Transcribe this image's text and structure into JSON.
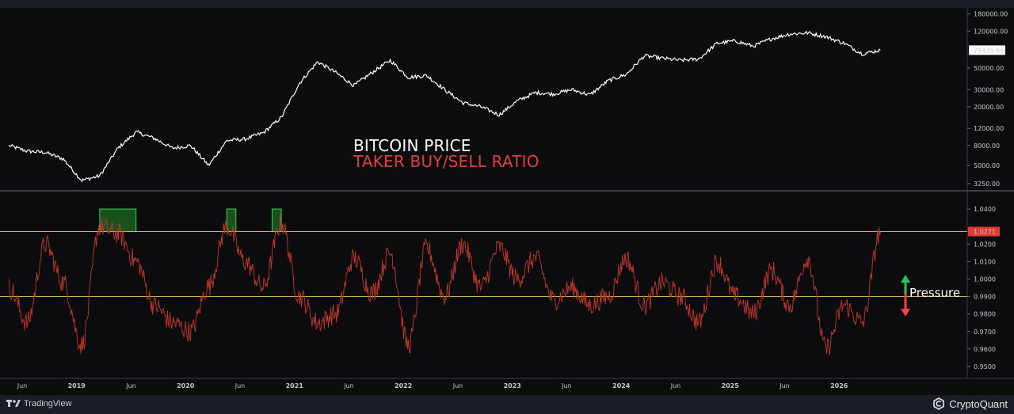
{
  "titles": {
    "price": "BITCOIN PRICE",
    "ratio": "TAKER BUY/SELL RATIO"
  },
  "pressure_label": "Pressure",
  "footer": {
    "left_brand": "TradingView",
    "right_brand": "CryptoQuant"
  },
  "colors": {
    "background": "#0c0c0f",
    "price_line": "#ffffff",
    "ratio_line": "#c0392b",
    "threshold_line": "#c8b94a",
    "highlight_fill": "#1b5e20",
    "highlight_stroke": "#3fd14a",
    "ratio_badge": "#e53935",
    "up_arrow": "#22c55e",
    "down_arrow": "#ef4444"
  },
  "chart_data": [
    {
      "type": "line",
      "series": [
        {
          "name": "BITCOIN PRICE",
          "scale": "log",
          "x": [
            "2018-05",
            "2018-07",
            "2018-09",
            "2018-11",
            "2019-01",
            "2019-03",
            "2019-05",
            "2019-07",
            "2019-09",
            "2019-11",
            "2020-01",
            "2020-03",
            "2020-05",
            "2020-07",
            "2020-09",
            "2020-11",
            "2021-01",
            "2021-03",
            "2021-05",
            "2021-07",
            "2021-09",
            "2021-11",
            "2022-01",
            "2022-03",
            "2022-05",
            "2022-07",
            "2022-09",
            "2022-11",
            "2023-01",
            "2023-03",
            "2023-05",
            "2023-07",
            "2023-09",
            "2023-11",
            "2024-01",
            "2024-03",
            "2024-05",
            "2024-07",
            "2024-09",
            "2024-11",
            "2025-01",
            "2025-03",
            "2025-05",
            "2025-07",
            "2025-09",
            "2025-11",
            "2026-01",
            "2026-03",
            "2026-05"
          ],
          "values": [
            8000,
            7000,
            6800,
            5800,
            3500,
            3900,
            7500,
            11000,
            9500,
            7500,
            8000,
            5000,
            9000,
            9300,
            10800,
            15500,
            35000,
            58000,
            45000,
            33000,
            45000,
            60000,
            40000,
            42000,
            30000,
            22000,
            20000,
            16500,
            23000,
            28000,
            27000,
            30000,
            26500,
            37000,
            43000,
            67000,
            63000,
            60000,
            62000,
            90000,
            95000,
            84000,
            100000,
            112000,
            115000,
            105000,
            90000,
            70000,
            76435
          ]
        }
      ],
      "yticks": [
        3250,
        5000,
        8000,
        12000,
        20000,
        30000,
        50000,
        76435.66,
        120000,
        180000
      ],
      "ytick_labels": [
        "3250.00",
        "5000.00",
        "8000.00",
        "12000.00",
        "20000.00",
        "30000.00",
        "50000.00",
        "76435.66",
        "120000.00",
        "180000.00"
      ],
      "ylim": [
        2900,
        200000
      ],
      "last_value_label": "76435.66"
    },
    {
      "type": "line",
      "series": [
        {
          "name": "TAKER BUY/SELL RATIO",
          "x": [
            "2018-05",
            "2018-07",
            "2018-09",
            "2018-11",
            "2019-01",
            "2019-03",
            "2019-05",
            "2019-07",
            "2019-09",
            "2019-11",
            "2020-01",
            "2020-03",
            "2020-05",
            "2020-07",
            "2020-09",
            "2020-11",
            "2021-01",
            "2021-03",
            "2021-05",
            "2021-07",
            "2021-09",
            "2021-11",
            "2022-01",
            "2022-03",
            "2022-05",
            "2022-07",
            "2022-09",
            "2022-11",
            "2023-01",
            "2023-03",
            "2023-05",
            "2023-07",
            "2023-09",
            "2023-11",
            "2024-01",
            "2024-03",
            "2024-05",
            "2024-07",
            "2024-09",
            "2024-11",
            "2025-01",
            "2025-03",
            "2025-05",
            "2025-07",
            "2025-09",
            "2025-11",
            "2026-01",
            "2026-03",
            "2026-05"
          ],
          "values": [
            0.995,
            0.975,
            1.02,
            0.998,
            0.962,
            1.03,
            1.026,
            1.01,
            0.985,
            0.975,
            0.97,
            0.996,
            1.03,
            1.01,
            0.995,
            1.032,
            0.99,
            0.975,
            0.98,
            1.012,
            0.992,
            1.015,
            0.962,
            1.018,
            0.99,
            1.02,
            0.995,
            1.018,
            1.0,
            1.012,
            0.988,
            0.995,
            0.985,
            0.99,
            1.012,
            0.985,
            0.998,
            0.99,
            0.975,
            1.01,
            0.99,
            0.98,
            1.005,
            0.985,
            1.012,
            0.96,
            0.985,
            0.975,
            1.027
          ]
        }
      ],
      "reference_lines": [
        1.0271,
        0.99
      ],
      "highlight_ranges": [
        [
          "2019-03",
          "2019-07"
        ],
        [
          "2020-05",
          "2020-06"
        ],
        [
          "2020-10",
          "2020-11"
        ]
      ],
      "yticks": [
        0.95,
        0.96,
        0.97,
        0.98,
        0.99,
        1.0,
        1.01,
        1.02,
        1.04
      ],
      "ytick_labels": [
        "0.9500",
        "0.9600",
        "0.9700",
        "0.9800",
        "0.9900",
        "1.0000",
        "1.0100",
        "1.0200",
        "1.0400"
      ],
      "ylim": [
        0.945,
        1.045
      ],
      "last_value_label": "1.0271"
    }
  ],
  "x_axis_labels": [
    "Jun",
    "2019",
    "Jun",
    "2020",
    "Jun",
    "2021",
    "Jun",
    "2022",
    "Jun",
    "2023",
    "Jun",
    "2024",
    "Jun",
    "2025",
    "Jun",
    "2026"
  ]
}
